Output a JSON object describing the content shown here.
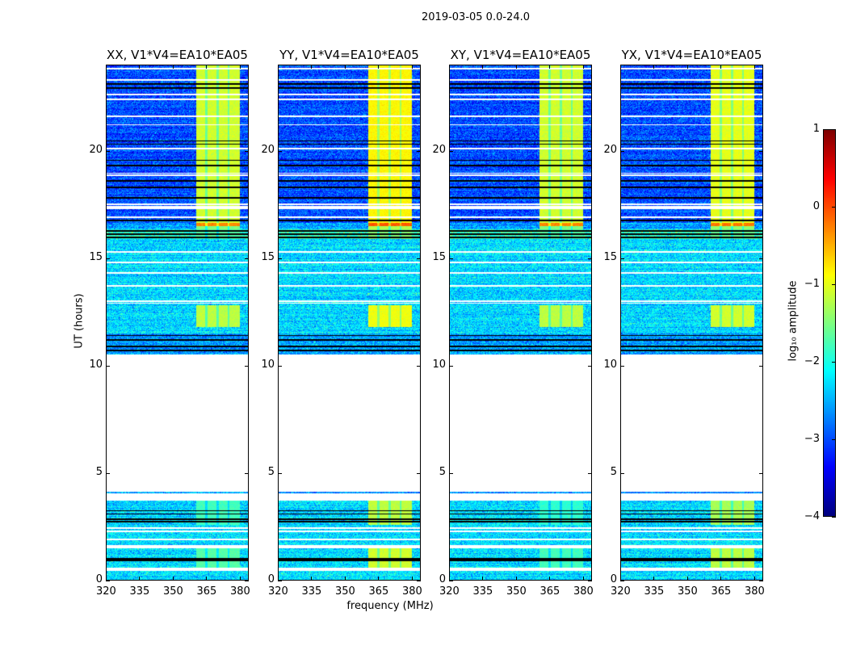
{
  "chart_data": {
    "type": "heatmap",
    "suptitle": "2019-03-05 0.0-24.0",
    "xlabel": "frequency (MHz)",
    "ylabel": "UT (hours)",
    "xlim": [
      320,
      384
    ],
    "ylim": [
      0,
      24
    ],
    "xticks": [
      "320",
      "335",
      "350",
      "365",
      "380"
    ],
    "xtick_values": [
      320,
      335,
      350,
      365,
      380
    ],
    "yticks": [
      "0",
      "5",
      "10",
      "15",
      "20"
    ],
    "ytick_values": [
      0,
      5,
      10,
      15,
      20
    ],
    "panels": [
      {
        "title": "XX, V1*V4=EA10*EA05",
        "band_offset": 0.0,
        "lower_band_offset": -0.3
      },
      {
        "title": "YY, V1*V4=EA10*EA05",
        "band_offset": 0.25,
        "lower_band_offset": 0.3
      },
      {
        "title": "XY, V1*V4=EA10*EA05",
        "band_offset": 0.0,
        "lower_band_offset": -0.4
      },
      {
        "title": "YX, V1*V4=EA10*EA05",
        "band_offset": 0.1,
        "lower_band_offset": 0.2
      }
    ],
    "colorbar": {
      "label": "log₁₀ amplitude",
      "range": [
        -4,
        1
      ],
      "ticks": [
        "1",
        "0",
        "−1",
        "−2",
        "−3",
        "−4"
      ],
      "tick_values": [
        1,
        0,
        -1,
        -2,
        -3,
        -4
      ],
      "colormap": "jet"
    },
    "rfi_band": {
      "freq_range": [
        360.5,
        380
      ],
      "dividers": [
        365,
        370,
        375
      ]
    },
    "segments": [
      {
        "t": [
          0.0,
          0.45
        ],
        "kind": "data",
        "level": -2.3,
        "band": null
      },
      {
        "t": [
          0.45,
          0.6
        ],
        "kind": "gap"
      },
      {
        "t": [
          0.6,
          0.9
        ],
        "kind": "data",
        "level": -2.3,
        "band": -1.4
      },
      {
        "t": [
          0.9,
          1.05
        ],
        "kind": "zero"
      },
      {
        "t": [
          1.05,
          1.5
        ],
        "kind": "data",
        "level": -2.3,
        "band": -1.4
      },
      {
        "t": [
          1.5,
          1.65
        ],
        "kind": "gap"
      },
      {
        "t": [
          1.65,
          2.6
        ],
        "kind": "data",
        "level": -2.3,
        "band": null
      },
      {
        "t": [
          2.6,
          3.7
        ],
        "kind": "data",
        "level": -2.3,
        "band": -1.5
      },
      {
        "t": [
          3.7,
          4.05
        ],
        "kind": "gap"
      },
      {
        "t": [
          4.05,
          4.12
        ],
        "kind": "data",
        "level": -2.6,
        "band": null
      },
      {
        "t": [
          4.12,
          10.5
        ],
        "kind": "gap"
      },
      {
        "t": [
          10.5,
          11.5
        ],
        "kind": "data",
        "level": -2.6,
        "band": null
      },
      {
        "t": [
          11.5,
          11.8
        ],
        "kind": "data",
        "level": -2.3,
        "band": null
      },
      {
        "t": [
          11.8,
          12.8
        ],
        "kind": "data",
        "level": -2.3,
        "band": -1.2
      },
      {
        "t": [
          12.8,
          15.9
        ],
        "kind": "data",
        "level": -2.3,
        "band": null
      },
      {
        "t": [
          15.9,
          16.35
        ],
        "kind": "data",
        "level": -1.9,
        "band": -1.7
      },
      {
        "t": [
          16.35,
          16.5
        ],
        "kind": "data",
        "level": -2.6,
        "band": -1.5
      },
      {
        "t": [
          16.5,
          16.65
        ],
        "kind": "data",
        "level": -2.6,
        "band": -0.3
      },
      {
        "t": [
          16.65,
          24.0
        ],
        "kind": "data",
        "level": -3.0,
        "band": -1.1
      }
    ],
    "white_lines": [
      0.95,
      1.9,
      2.3,
      2.45,
      12.9,
      13.0,
      13.7,
      14.3,
      14.8,
      15.3,
      16.9,
      17.3,
      17.4,
      17.5,
      18.85,
      18.95,
      20.1,
      21.2,
      21.6,
      22.4,
      22.6,
      23.3,
      23.8
    ],
    "black_lines": [
      2.75,
      2.85,
      3.1,
      3.25,
      10.7,
      10.9,
      11.2,
      11.4,
      15.95,
      16.1,
      16.25,
      16.75,
      17.8,
      18.3,
      18.6,
      19.3,
      19.55,
      20.3,
      20.45,
      22.9,
      23.1
    ]
  }
}
